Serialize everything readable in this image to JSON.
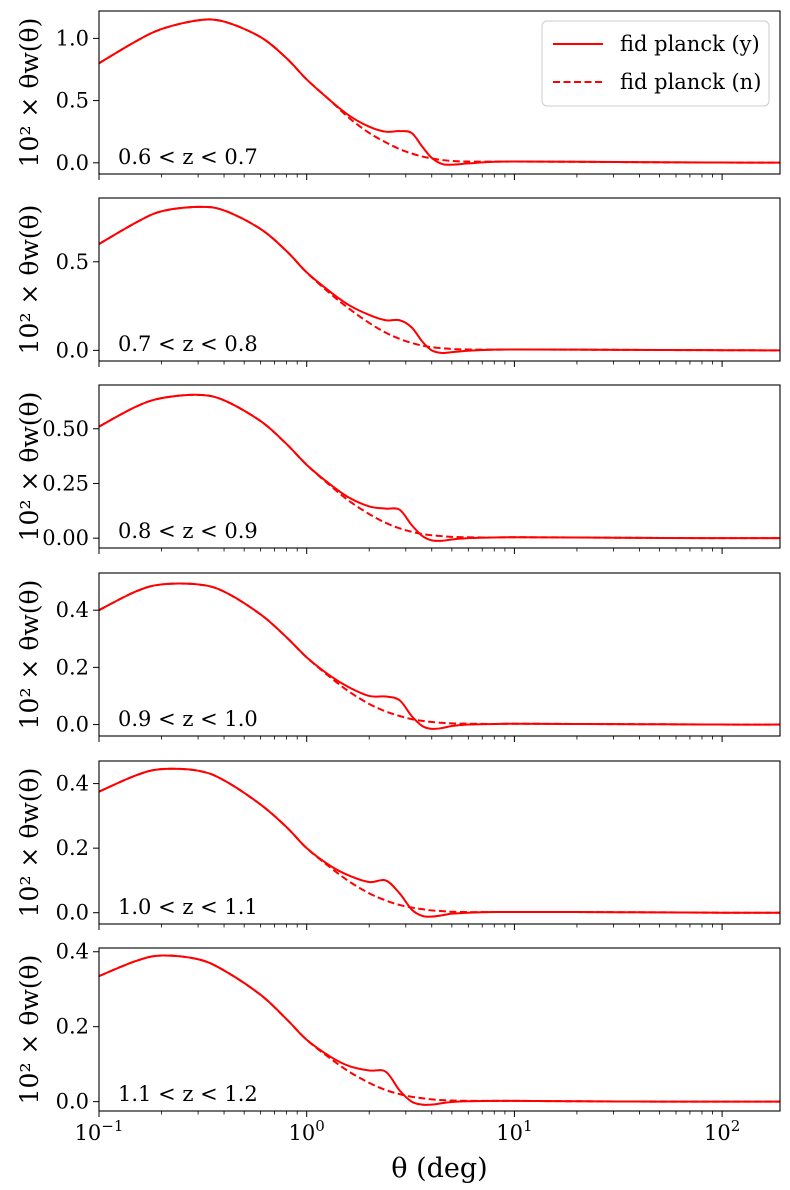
{
  "chart_data": {
    "type": "line",
    "x_scale": "log",
    "xlim": [
      0.1,
      190
    ],
    "xlabel": "θ (deg)",
    "x_ticks": [
      {
        "value": 0.1,
        "base": "10",
        "exp": "−1"
      },
      {
        "value": 1,
        "base": "10",
        "exp": "0"
      },
      {
        "value": 10,
        "base": "10",
        "exp": "1"
      },
      {
        "value": 100,
        "base": "10",
        "exp": "2"
      }
    ],
    "ylabel": "10² × θw(θ)",
    "legend": {
      "placement": "top-right",
      "entries": [
        {
          "label": "fid planck (y)",
          "style": "solid"
        },
        {
          "label": "fid planck (n)",
          "style": "dashed"
        }
      ]
    },
    "series_color": "#ff0000",
    "x": [
      0.1,
      0.15,
      0.2,
      0.3,
      0.4,
      0.6,
      0.8,
      1.0,
      1.3,
      1.6,
      2.0,
      2.4,
      2.8,
      3.2,
      3.6,
      4.0,
      4.5,
      5.0,
      6.0,
      8.0,
      10.0,
      20.0,
      50.0,
      100.0,
      190.0
    ],
    "panels": [
      {
        "label": "0.6 < z < 0.7",
        "ylim": [
          -0.09,
          1.22
        ],
        "yticks": [
          "0.0",
          "0.5",
          "1.0"
        ],
        "ytick_values": [
          0.0,
          0.5,
          1.0
        ],
        "series": [
          {
            "name": "fid planck (y)",
            "style": "solid",
            "values": [
              0.8,
              0.975,
              1.075,
              1.145,
              1.135,
              1.01,
              0.84,
              0.67,
              0.5,
              0.38,
              0.29,
              0.25,
              0.255,
              0.24,
              0.13,
              0.04,
              -0.01,
              -0.015,
              -0.005,
              0.008,
              0.01,
              0.008,
              0.004,
              0.002,
              0.001
            ]
          },
          {
            "name": "fid planck (n)",
            "style": "dashed",
            "values": [
              0.8,
              0.975,
              1.075,
              1.145,
              1.135,
              1.01,
              0.84,
              0.67,
              0.5,
              0.36,
              0.24,
              0.165,
              0.11,
              0.075,
              0.05,
              0.035,
              0.022,
              0.015,
              0.01,
              0.009,
              0.01,
              0.008,
              0.004,
              0.002,
              0.001
            ]
          }
        ]
      },
      {
        "label": "0.7 < z < 0.8",
        "ylim": [
          -0.06,
          0.86
        ],
        "yticks": [
          "0.0",
          "0.5"
        ],
        "ytick_values": [
          0.0,
          0.5
        ],
        "series": [
          {
            "name": "fid planck (y)",
            "style": "solid",
            "values": [
              0.6,
              0.72,
              0.785,
              0.81,
              0.79,
              0.685,
              0.56,
              0.44,
              0.33,
              0.255,
              0.2,
              0.17,
              0.17,
              0.13,
              0.05,
              0.0,
              -0.015,
              -0.01,
              -0.002,
              0.004,
              0.005,
              0.004,
              0.002,
              0.001,
              0.0
            ]
          },
          {
            "name": "fid planck (n)",
            "style": "dashed",
            "values": [
              0.6,
              0.72,
              0.785,
              0.81,
              0.79,
              0.685,
              0.56,
              0.44,
              0.32,
              0.235,
              0.155,
              0.1,
              0.065,
              0.042,
              0.027,
              0.018,
              0.012,
              0.008,
              0.005,
              0.004,
              0.005,
              0.004,
              0.002,
              0.001,
              0.0
            ]
          }
        ]
      },
      {
        "label": "0.8 < z < 0.9",
        "ylim": [
          -0.045,
          0.7
        ],
        "yticks": [
          "0.00",
          "0.25",
          "0.50"
        ],
        "ytick_values": [
          0.0,
          0.25,
          0.5
        ],
        "series": [
          {
            "name": "fid planck (y)",
            "style": "solid",
            "values": [
              0.51,
              0.6,
              0.64,
              0.655,
              0.63,
              0.535,
              0.43,
              0.335,
              0.245,
              0.185,
              0.145,
              0.135,
              0.13,
              0.06,
              0.01,
              -0.01,
              -0.012,
              -0.006,
              0.0,
              0.003,
              0.004,
              0.003,
              0.001,
              0.0,
              0.0
            ]
          },
          {
            "name": "fid planck (n)",
            "style": "dashed",
            "values": [
              0.51,
              0.6,
              0.64,
              0.655,
              0.63,
              0.535,
              0.43,
              0.335,
              0.24,
              0.17,
              0.11,
              0.07,
              0.045,
              0.029,
              0.019,
              0.013,
              0.009,
              0.006,
              0.004,
              0.003,
              0.004,
              0.003,
              0.001,
              0.0,
              0.0
            ]
          }
        ]
      },
      {
        "label": "0.9 < z < 1.0",
        "ylim": [
          -0.04,
          0.53
        ],
        "yticks": [
          "0.0",
          "0.2",
          "0.4"
        ],
        "ytick_values": [
          0.0,
          0.2,
          0.4
        ],
        "series": [
          {
            "name": "fid planck (y)",
            "style": "solid",
            "values": [
              0.4,
              0.465,
              0.49,
              0.49,
              0.465,
              0.385,
              0.305,
              0.235,
              0.17,
              0.13,
              0.1,
              0.098,
              0.085,
              0.03,
              -0.005,
              -0.015,
              -0.012,
              -0.005,
              0.0,
              0.002,
              0.003,
              0.002,
              0.001,
              0.0,
              0.0
            ]
          },
          {
            "name": "fid planck (n)",
            "style": "dashed",
            "values": [
              0.4,
              0.465,
              0.49,
              0.49,
              0.465,
              0.385,
              0.305,
              0.235,
              0.165,
              0.115,
              0.072,
              0.046,
              0.03,
              0.019,
              0.013,
              0.009,
              0.006,
              0.004,
              0.003,
              0.002,
              0.003,
              0.002,
              0.001,
              0.0,
              0.0
            ]
          }
        ]
      },
      {
        "label": "1.0 < z < 1.1",
        "ylim": [
          -0.035,
          0.47
        ],
        "yticks": [
          "0.0",
          "0.2",
          "0.4"
        ],
        "ytick_values": [
          0.0,
          0.2,
          0.4
        ],
        "series": [
          {
            "name": "fid planck (y)",
            "style": "solid",
            "values": [
              0.375,
              0.425,
              0.445,
              0.44,
              0.41,
              0.335,
              0.265,
              0.2,
              0.145,
              0.115,
              0.095,
              0.1,
              0.06,
              0.01,
              -0.01,
              -0.012,
              -0.008,
              -0.003,
              0.0,
              0.002,
              0.002,
              0.002,
              0.001,
              0.0,
              0.0
            ]
          },
          {
            "name": "fid planck (n)",
            "style": "dashed",
            "values": [
              0.375,
              0.425,
              0.445,
              0.44,
              0.41,
              0.335,
              0.265,
              0.2,
              0.14,
              0.097,
              0.06,
              0.038,
              0.024,
              0.016,
              0.011,
              0.007,
              0.005,
              0.003,
              0.002,
              0.002,
              0.002,
              0.002,
              0.001,
              0.0,
              0.0
            ]
          }
        ]
      },
      {
        "label": "1.1 < z < 1.2",
        "ylim": [
          -0.025,
          0.41
        ],
        "yticks": [
          "0.0",
          "0.2",
          "0.4"
        ],
        "ytick_values": [
          0.0,
          0.2,
          0.4
        ],
        "series": [
          {
            "name": "fid planck (y)",
            "style": "solid",
            "values": [
              0.335,
              0.375,
              0.39,
              0.38,
              0.35,
              0.285,
              0.22,
              0.165,
              0.12,
              0.095,
              0.083,
              0.08,
              0.03,
              0.0,
              -0.008,
              -0.008,
              -0.004,
              -0.001,
              0.001,
              0.002,
              0.002,
              0.001,
              0.0,
              0.0,
              0.0
            ]
          },
          {
            "name": "fid planck (n)",
            "style": "dashed",
            "values": [
              0.335,
              0.375,
              0.39,
              0.38,
              0.35,
              0.285,
              0.22,
              0.165,
              0.115,
              0.08,
              0.05,
              0.031,
              0.02,
              0.013,
              0.009,
              0.006,
              0.004,
              0.003,
              0.002,
              0.002,
              0.002,
              0.001,
              0.0,
              0.0,
              0.0
            ]
          }
        ]
      }
    ]
  }
}
